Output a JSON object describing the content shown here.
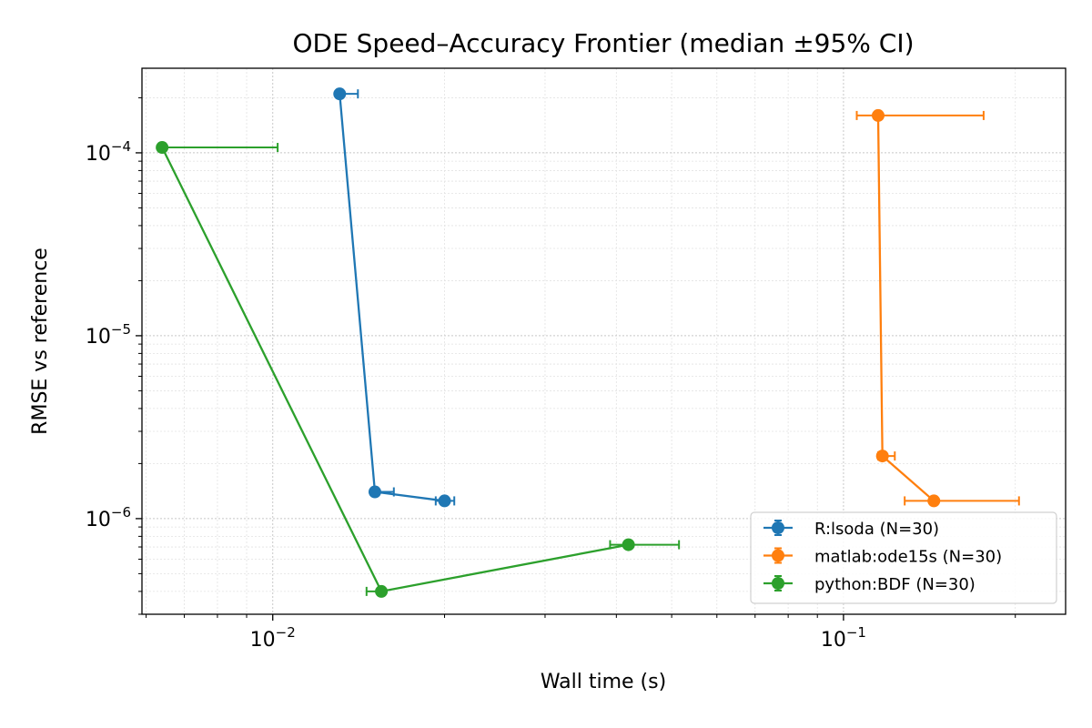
{
  "chart_data": {
    "type": "line",
    "title": "ODE Speed–Accuracy Frontier (median ±95% CI)",
    "xlabel": "Wall time (s)",
    "ylabel": "RMSE vs reference",
    "xscale": "log",
    "yscale": "log",
    "xlim": [
      0.0059,
      0.245
    ],
    "ylim": [
      3e-07,
      0.00029
    ],
    "x_major_ticks": [
      {
        "value": 0.01,
        "base": "10",
        "exp": "−2"
      },
      {
        "value": 0.1,
        "base": "10",
        "exp": "−1"
      }
    ],
    "y_major_ticks": [
      {
        "value": 1e-06,
        "base": "10",
        "exp": "−6"
      },
      {
        "value": 1e-05,
        "base": "10",
        "exp": "−5"
      },
      {
        "value": 0.0001,
        "base": "10",
        "exp": "−4"
      }
    ],
    "grid": true,
    "legend_position": "lower-right",
    "series": [
      {
        "name": "R:lsoda (N=30)",
        "color": "#1f77b4",
        "points": [
          {
            "x": 0.0131,
            "y": 0.00021,
            "xlo": 0.0131,
            "xhi": 0.0141
          },
          {
            "x": 0.0151,
            "y": 1.4e-06,
            "xlo": 0.0151,
            "xhi": 0.0163
          },
          {
            "x": 0.02,
            "y": 1.25e-06,
            "xlo": 0.0193,
            "xhi": 0.0208
          }
        ]
      },
      {
        "name": "matlab:ode15s (N=30)",
        "color": "#ff7f0e",
        "points": [
          {
            "x": 0.115,
            "y": 0.00016,
            "xlo": 0.1055,
            "xhi": 0.176
          },
          {
            "x": 0.117,
            "y": 2.2e-06,
            "xlo": 0.115,
            "xhi": 0.123
          },
          {
            "x": 0.144,
            "y": 1.25e-06,
            "xlo": 0.128,
            "xhi": 0.203
          }
        ]
      },
      {
        "name": "python:BDF (N=30)",
        "color": "#2ca02c",
        "points": [
          {
            "x": 0.0064,
            "y": 0.000107,
            "xlo": 0.0064,
            "xhi": 0.0102
          },
          {
            "x": 0.0155,
            "y": 4e-07,
            "xlo": 0.0146,
            "xhi": 0.0155
          },
          {
            "x": 0.042,
            "y": 7.2e-07,
            "xlo": 0.039,
            "xhi": 0.0515
          }
        ]
      }
    ]
  }
}
